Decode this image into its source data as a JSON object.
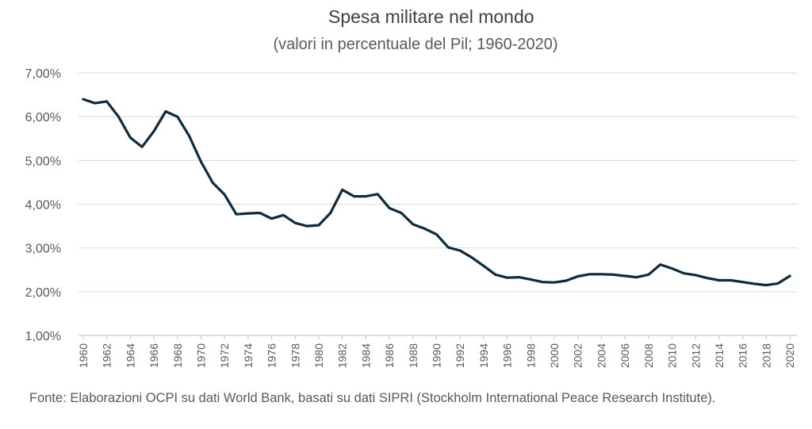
{
  "chart_data": {
    "type": "line",
    "title": "Spesa militare nel mondo",
    "subtitle": "(valori in percentuale del Pil; 1960-2020)",
    "xlabel": "",
    "ylabel": "",
    "ylim": [
      1.0,
      7.0
    ],
    "y_ticks": [
      "1,00%",
      "2,00%",
      "3,00%",
      "4,00%",
      "5,00%",
      "6,00%",
      "7,00%"
    ],
    "y_tick_values": [
      1,
      2,
      3,
      4,
      5,
      6,
      7
    ],
    "x_tick_labels": [
      "1960",
      "1962",
      "1964",
      "1966",
      "1968",
      "1970",
      "1972",
      "1974",
      "1976",
      "1978",
      "1980",
      "1982",
      "1984",
      "1986",
      "1988",
      "1990",
      "1992",
      "1994",
      "1996",
      "1998",
      "2000",
      "2002",
      "2004",
      "2006",
      "2008",
      "2010",
      "2012",
      "2014",
      "2016",
      "2018",
      "2020"
    ],
    "grid": true,
    "legend": "none",
    "color": "#0d2b3e",
    "series": [
      {
        "x": [
          1960,
          1961,
          1962,
          1963,
          1964,
          1965,
          1966,
          1967,
          1968,
          1969,
          1970,
          1971,
          1972,
          1973,
          1974,
          1975,
          1976,
          1977,
          1978,
          1979,
          1980,
          1981,
          1982,
          1983,
          1984,
          1985,
          1986,
          1987,
          1988,
          1989,
          1990,
          1991,
          1992,
          1993,
          1994,
          1995,
          1996,
          1997,
          1998,
          1999,
          2000,
          2001,
          2002,
          2003,
          2004,
          2005,
          2006,
          2007,
          2008,
          2009,
          2010,
          2011,
          2012,
          2013,
          2014,
          2015,
          2016,
          2017,
          2018,
          2019,
          2020
        ],
        "values": [
          6.4,
          6.31,
          6.35,
          6.0,
          5.52,
          5.31,
          5.67,
          6.12,
          6.0,
          5.56,
          4.97,
          4.49,
          4.22,
          3.77,
          3.79,
          3.8,
          3.67,
          3.75,
          3.57,
          3.5,
          3.52,
          3.8,
          4.33,
          4.18,
          4.18,
          4.23,
          3.91,
          3.8,
          3.54,
          3.44,
          3.31,
          3.01,
          2.94,
          2.78,
          2.59,
          2.39,
          2.32,
          2.33,
          2.28,
          2.22,
          2.21,
          2.25,
          2.35,
          2.4,
          2.4,
          2.39,
          2.36,
          2.33,
          2.39,
          2.62,
          2.53,
          2.42,
          2.38,
          2.31,
          2.26,
          2.26,
          2.22,
          2.18,
          2.15,
          2.19,
          2.36
        ]
      }
    ]
  },
  "footer": {
    "source": "Fonte: Elaborazioni OCPI su dati World Bank, basati su dati SIPRI (Stockholm International Peace Research Institute)."
  }
}
